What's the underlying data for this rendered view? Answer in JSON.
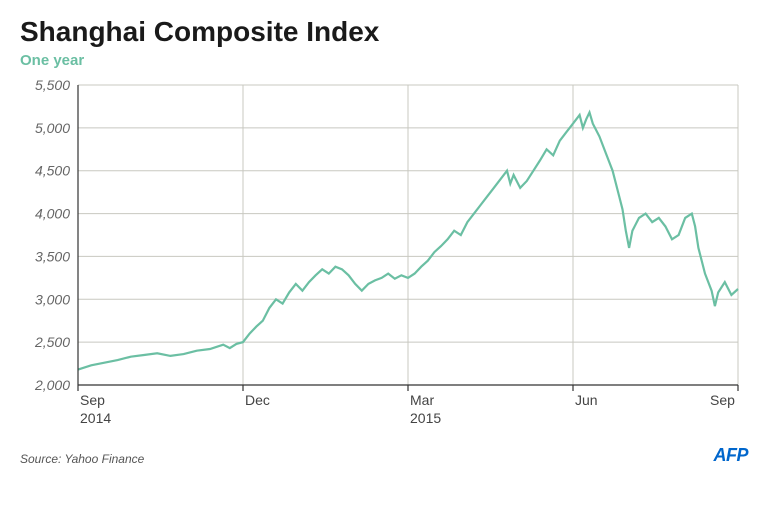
{
  "title": "Shanghai Composite Index",
  "subtitle": "One year",
  "subtitle_color": "#6bbfa3",
  "source": "Source: Yahoo Finance",
  "logo_text": "AFP",
  "logo_color": "#0066cc",
  "chart": {
    "type": "line",
    "background_color": "#ffffff",
    "grid_color": "#c8c8c0",
    "axis_color": "#333333",
    "line_color": "#6bbfa3",
    "line_width": 2.2,
    "ylim": [
      2000,
      5500
    ],
    "ytick_step": 500,
    "yticks": [
      2000,
      2500,
      3000,
      3500,
      4000,
      4500,
      5000,
      5500
    ],
    "ytick_labels": [
      "2,000",
      "2,500",
      "3,000",
      "3,500",
      "4,000",
      "4,500",
      "5,000",
      "5,500"
    ],
    "ylabel_fontsize": 14,
    "xticks": [
      {
        "pos": 0.0,
        "label": "Sep",
        "sub": "2014"
      },
      {
        "pos": 0.25,
        "label": "Dec",
        "sub": ""
      },
      {
        "pos": 0.5,
        "label": "Mar",
        "sub": "2015"
      },
      {
        "pos": 0.75,
        "label": "Jun",
        "sub": ""
      },
      {
        "pos": 1.0,
        "label": "Sep",
        "sub": ""
      }
    ],
    "series": [
      {
        "x": 0.0,
        "y": 2180
      },
      {
        "x": 0.02,
        "y": 2230
      },
      {
        "x": 0.04,
        "y": 2260
      },
      {
        "x": 0.06,
        "y": 2290
      },
      {
        "x": 0.08,
        "y": 2330
      },
      {
        "x": 0.1,
        "y": 2350
      },
      {
        "x": 0.12,
        "y": 2370
      },
      {
        "x": 0.14,
        "y": 2340
      },
      {
        "x": 0.16,
        "y": 2360
      },
      {
        "x": 0.18,
        "y": 2400
      },
      {
        "x": 0.2,
        "y": 2420
      },
      {
        "x": 0.22,
        "y": 2470
      },
      {
        "x": 0.23,
        "y": 2430
      },
      {
        "x": 0.24,
        "y": 2480
      },
      {
        "x": 0.25,
        "y": 2500
      },
      {
        "x": 0.26,
        "y": 2600
      },
      {
        "x": 0.27,
        "y": 2680
      },
      {
        "x": 0.28,
        "y": 2750
      },
      {
        "x": 0.29,
        "y": 2900
      },
      {
        "x": 0.3,
        "y": 3000
      },
      {
        "x": 0.31,
        "y": 2950
      },
      {
        "x": 0.32,
        "y": 3080
      },
      {
        "x": 0.33,
        "y": 3180
      },
      {
        "x": 0.34,
        "y": 3100
      },
      {
        "x": 0.35,
        "y": 3200
      },
      {
        "x": 0.36,
        "y": 3280
      },
      {
        "x": 0.37,
        "y": 3350
      },
      {
        "x": 0.38,
        "y": 3300
      },
      {
        "x": 0.39,
        "y": 3380
      },
      {
        "x": 0.4,
        "y": 3350
      },
      {
        "x": 0.41,
        "y": 3280
      },
      {
        "x": 0.42,
        "y": 3180
      },
      {
        "x": 0.43,
        "y": 3100
      },
      {
        "x": 0.44,
        "y": 3180
      },
      {
        "x": 0.45,
        "y": 3220
      },
      {
        "x": 0.46,
        "y": 3250
      },
      {
        "x": 0.47,
        "y": 3300
      },
      {
        "x": 0.48,
        "y": 3240
      },
      {
        "x": 0.49,
        "y": 3280
      },
      {
        "x": 0.5,
        "y": 3250
      },
      {
        "x": 0.51,
        "y": 3300
      },
      {
        "x": 0.52,
        "y": 3380
      },
      {
        "x": 0.53,
        "y": 3450
      },
      {
        "x": 0.54,
        "y": 3550
      },
      {
        "x": 0.55,
        "y": 3620
      },
      {
        "x": 0.56,
        "y": 3700
      },
      {
        "x": 0.57,
        "y": 3800
      },
      {
        "x": 0.58,
        "y": 3750
      },
      {
        "x": 0.59,
        "y": 3900
      },
      {
        "x": 0.6,
        "y": 4000
      },
      {
        "x": 0.61,
        "y": 4100
      },
      {
        "x": 0.62,
        "y": 4200
      },
      {
        "x": 0.63,
        "y": 4300
      },
      {
        "x": 0.64,
        "y": 4400
      },
      {
        "x": 0.65,
        "y": 4500
      },
      {
        "x": 0.655,
        "y": 4350
      },
      {
        "x": 0.66,
        "y": 4450
      },
      {
        "x": 0.67,
        "y": 4300
      },
      {
        "x": 0.68,
        "y": 4380
      },
      {
        "x": 0.69,
        "y": 4500
      },
      {
        "x": 0.7,
        "y": 4620
      },
      {
        "x": 0.71,
        "y": 4750
      },
      {
        "x": 0.72,
        "y": 4680
      },
      {
        "x": 0.73,
        "y": 4850
      },
      {
        "x": 0.74,
        "y": 4950
      },
      {
        "x": 0.75,
        "y": 5050
      },
      {
        "x": 0.76,
        "y": 5150
      },
      {
        "x": 0.765,
        "y": 5000
      },
      {
        "x": 0.77,
        "y": 5100
      },
      {
        "x": 0.775,
        "y": 5180
      },
      {
        "x": 0.78,
        "y": 5050
      },
      {
        "x": 0.79,
        "y": 4900
      },
      {
        "x": 0.8,
        "y": 4700
      },
      {
        "x": 0.81,
        "y": 4500
      },
      {
        "x": 0.82,
        "y": 4200
      },
      {
        "x": 0.825,
        "y": 4050
      },
      {
        "x": 0.83,
        "y": 3800
      },
      {
        "x": 0.835,
        "y": 3600
      },
      {
        "x": 0.84,
        "y": 3800
      },
      {
        "x": 0.85,
        "y": 3950
      },
      {
        "x": 0.86,
        "y": 4000
      },
      {
        "x": 0.87,
        "y": 3900
      },
      {
        "x": 0.88,
        "y": 3950
      },
      {
        "x": 0.89,
        "y": 3850
      },
      {
        "x": 0.9,
        "y": 3700
      },
      {
        "x": 0.91,
        "y": 3750
      },
      {
        "x": 0.92,
        "y": 3950
      },
      {
        "x": 0.93,
        "y": 4000
      },
      {
        "x": 0.935,
        "y": 3850
      },
      {
        "x": 0.94,
        "y": 3600
      },
      {
        "x": 0.95,
        "y": 3300
      },
      {
        "x": 0.96,
        "y": 3100
      },
      {
        "x": 0.965,
        "y": 2920
      },
      {
        "x": 0.97,
        "y": 3080
      },
      {
        "x": 0.98,
        "y": 3200
      },
      {
        "x": 0.99,
        "y": 3050
      },
      {
        "x": 1.0,
        "y": 3120
      }
    ]
  }
}
